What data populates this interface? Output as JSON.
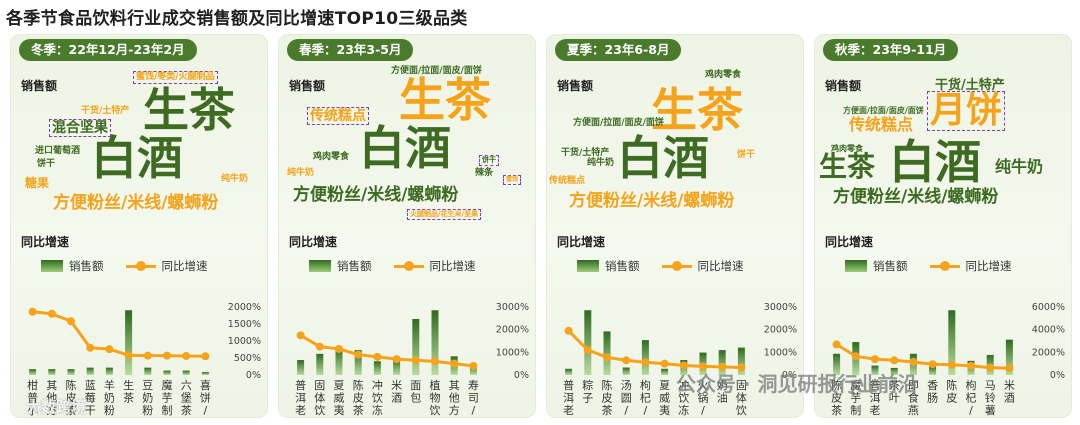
{
  "title": "各季节食品饮料行业成交销售额及同比增速TOP10三级品类",
  "labels": {
    "sales": "销售额",
    "growth": "同比增速",
    "legend_bar": "销售额",
    "legend_line": "同比增速"
  },
  "colors": {
    "dark_green": "#3d6b22",
    "orange": "#f5a31a",
    "purple": "#7b3fc0"
  },
  "watermarks": {
    "left": "大数跨境",
    "right": "公众号 · 洞见研报行业前沿"
  },
  "panels": [
    {
      "season": "冬季：22年12月-23年2月",
      "words": [
        {
          "t": "生茶",
          "c": "dark",
          "s": 46,
          "x": 132,
          "y": 52
        },
        {
          "t": "白酒",
          "c": "dark",
          "s": 46,
          "x": 80,
          "y": 100
        },
        {
          "t": "方便粉丝/米线/螺蛳粉",
          "c": "orange",
          "s": 17,
          "x": 42,
          "y": 160
        },
        {
          "t": "混合坚果",
          "c": "dark",
          "s": 14,
          "x": 38,
          "y": 84,
          "box": true
        },
        {
          "t": "蜜饯/枣类/火腿制品",
          "c": "orange",
          "s": 9,
          "x": 122,
          "y": 36,
          "box": true
        },
        {
          "t": "干货/土特产",
          "c": "orange",
          "s": 9,
          "x": 70,
          "y": 72
        },
        {
          "t": "进口葡萄酒",
          "c": "dark",
          "s": 9,
          "x": 24,
          "y": 112
        },
        {
          "t": "饼干",
          "c": "dark",
          "s": 9,
          "x": 26,
          "y": 125
        },
        {
          "t": "糖果",
          "c": "orange",
          "s": 12,
          "x": 14,
          "y": 142
        },
        {
          "t": "纯牛奶",
          "c": "orange",
          "s": 9,
          "x": 210,
          "y": 140
        }
      ],
      "chart_data": {
        "type": "bar",
        "categories": [
          "柑普小青柑",
          "其他方便菜",
          "陈皮茶",
          "蓝莓干",
          "羊奶粉",
          "生茶",
          "豆奶粉",
          "魔芋制品",
          "六堡茶",
          "喜饼/诞生..."
        ],
        "series": [
          {
            "name": "销售额",
            "values": [
              4,
              4,
              4,
              5,
              5,
              44,
              5,
              3,
              3,
              2
            ]
          },
          {
            "name": "同比增速",
            "values": [
              1860,
              1800,
              1580,
              800,
              760,
              580,
              570,
              570,
              560,
              550
            ]
          }
        ],
        "y2_ticks": [
          "0%",
          "500%",
          "1000%",
          "1500%",
          "2000%"
        ],
        "y2lim": [
          0,
          2000
        ]
      }
    },
    {
      "season": "春季：23年3-5月",
      "words": [
        {
          "t": "生茶",
          "c": "orange",
          "s": 46,
          "x": 120,
          "y": 42
        },
        {
          "t": "白酒",
          "c": "dark",
          "s": 46,
          "x": 80,
          "y": 90
        },
        {
          "t": "方便粉丝/米线/螺蛳粉",
          "c": "dark",
          "s": 17,
          "x": 14,
          "y": 152
        },
        {
          "t": "传统糕点",
          "c": "orange",
          "s": 14,
          "x": 28,
          "y": 72,
          "box": true
        },
        {
          "t": "方便面/拉面/面皮/面饼",
          "c": "dark",
          "s": 9,
          "x": 112,
          "y": 32
        },
        {
          "t": "鸡肉零食",
          "c": "dark",
          "s": 9,
          "x": 34,
          "y": 118
        },
        {
          "t": "纯牛奶",
          "c": "orange",
          "s": 9,
          "x": 8,
          "y": 134
        },
        {
          "t": "饼干",
          "c": "dark",
          "s": 7,
          "x": 200,
          "y": 120,
          "box": true
        },
        {
          "t": "辣条",
          "c": "dark",
          "s": 9,
          "x": 196,
          "y": 134
        },
        {
          "t": "蜜饯",
          "c": "orange",
          "s": 6,
          "x": 224,
          "y": 140,
          "box": true
        },
        {
          "t": "火腿制品/花生米/坚果",
          "c": "orange",
          "s": 7,
          "x": 128,
          "y": 174,
          "box": true
        }
      ],
      "chart_data": {
        "type": "bar",
        "categories": [
          "普洱老茶",
          "固体饮料",
          "夏威夷果",
          "陈皮茶",
          "冲饮冻干",
          "米酒",
          "面包",
          "植物饮料",
          "其他方便菜",
          "寿司/饭团"
        ],
        "series": [
          {
            "name": "销售额",
            "values": [
              12,
              17,
              22,
              20,
              11,
              13,
              45,
              52,
              15,
              9
            ]
          },
          {
            "name": "同比增速",
            "values": [
              1750,
              1250,
              1150,
              900,
              800,
              700,
              650,
              600,
              500,
              400
            ]
          }
        ],
        "y2_ticks": [
          "0%",
          "1000%",
          "2000%",
          "3000%"
        ],
        "y2lim": [
          0,
          3000
        ]
      }
    },
    {
      "season": "夏季：23年6-8月",
      "words": [
        {
          "t": "生茶",
          "c": "orange",
          "s": 46,
          "x": 104,
          "y": 52
        },
        {
          "t": "白酒",
          "c": "dark",
          "s": 46,
          "x": 70,
          "y": 100
        },
        {
          "t": "方便粉丝/米线/螺蛳粉",
          "c": "orange",
          "s": 17,
          "x": 22,
          "y": 158
        },
        {
          "t": "鸡肉零食",
          "c": "dark",
          "s": 9,
          "x": 158,
          "y": 36
        },
        {
          "t": "方便面/拉面/面皮/面饼",
          "c": "dark",
          "s": 9,
          "x": 26,
          "y": 84
        },
        {
          "t": "干货/土特产",
          "c": "dark",
          "s": 9,
          "x": 14,
          "y": 114
        },
        {
          "t": "纯牛奶",
          "c": "dark",
          "s": 9,
          "x": 40,
          "y": 124
        },
        {
          "t": "饼干",
          "c": "orange",
          "s": 9,
          "x": 190,
          "y": 116
        },
        {
          "t": "传统糕点",
          "c": "orange",
          "s": 9,
          "x": 2,
          "y": 142
        }
      ],
      "chart_data": {
        "type": "bar",
        "categories": [
          "普洱老茶",
          "粽子",
          "陈皮茶",
          "汤圆/元宵",
          "枸杞/茶膏",
          "夏威夷果",
          "冲饮冻干",
          "火锅/汤料",
          "奶油",
          "固体饮料"
        ],
        "series": [
          {
            "name": "销售额",
            "values": [
              5,
              52,
              35,
              6,
              28,
              5,
              12,
              18,
              20,
              22
            ]
          },
          {
            "name": "同比增速",
            "values": [
              1950,
              1100,
              780,
              650,
              560,
              500,
              420,
              380,
              360,
              330
            ]
          }
        ],
        "y2_ticks": [
          "0%",
          "1000%",
          "2000%",
          "3000%"
        ],
        "y2lim": [
          0,
          3000
        ]
      }
    },
    {
      "season": "秋季：23年9-11月",
      "words": [
        {
          "t": "月饼",
          "c": "orange",
          "s": 36,
          "x": 112,
          "y": 56,
          "box": true
        },
        {
          "t": "白酒",
          "c": "dark",
          "s": 46,
          "x": 74,
          "y": 104
        },
        {
          "t": "生茶",
          "c": "dark",
          "s": 28,
          "x": 4,
          "y": 118
        },
        {
          "t": "纯牛奶",
          "c": "dark",
          "s": 16,
          "x": 180,
          "y": 124
        },
        {
          "t": "方便粉丝/米线/螺蛳粉",
          "c": "dark",
          "s": 17,
          "x": 18,
          "y": 154
        },
        {
          "t": "干货/土特产",
          "c": "dark",
          "s": 13,
          "x": 120,
          "y": 44
        },
        {
          "t": "传统糕点",
          "c": "orange",
          "s": 16,
          "x": 34,
          "y": 82
        },
        {
          "t": "方便面/拉面/面皮/面饼",
          "c": "dark",
          "s": 8,
          "x": 28,
          "y": 72
        },
        {
          "t": "鸡肉零食",
          "c": "dark",
          "s": 8,
          "x": 16,
          "y": 110
        }
      ],
      "chart_data": {
        "type": "bar",
        "categories": [
          "陈皮茶",
          "魔芋制品",
          "普洱老茶",
          "茶叶",
          "即食燕窝",
          "香肠",
          "陈皮",
          "枸杞/茶膏",
          "马铃薯粉",
          "米酒"
        ],
        "series": [
          {
            "name": "销售额",
            "values": [
              18,
              28,
              8,
              6,
              18,
              7,
              55,
              12,
              17,
              30
            ]
          },
          {
            "name": "同比增速",
            "values": [
              2700,
              1650,
              1400,
              1300,
              1150,
              950,
              900,
              800,
              650,
              600
            ]
          }
        ],
        "y2_ticks": [
          "0%",
          "2000%",
          "4000%",
          "6000%"
        ],
        "y2lim": [
          0,
          6000
        ]
      }
    }
  ]
}
